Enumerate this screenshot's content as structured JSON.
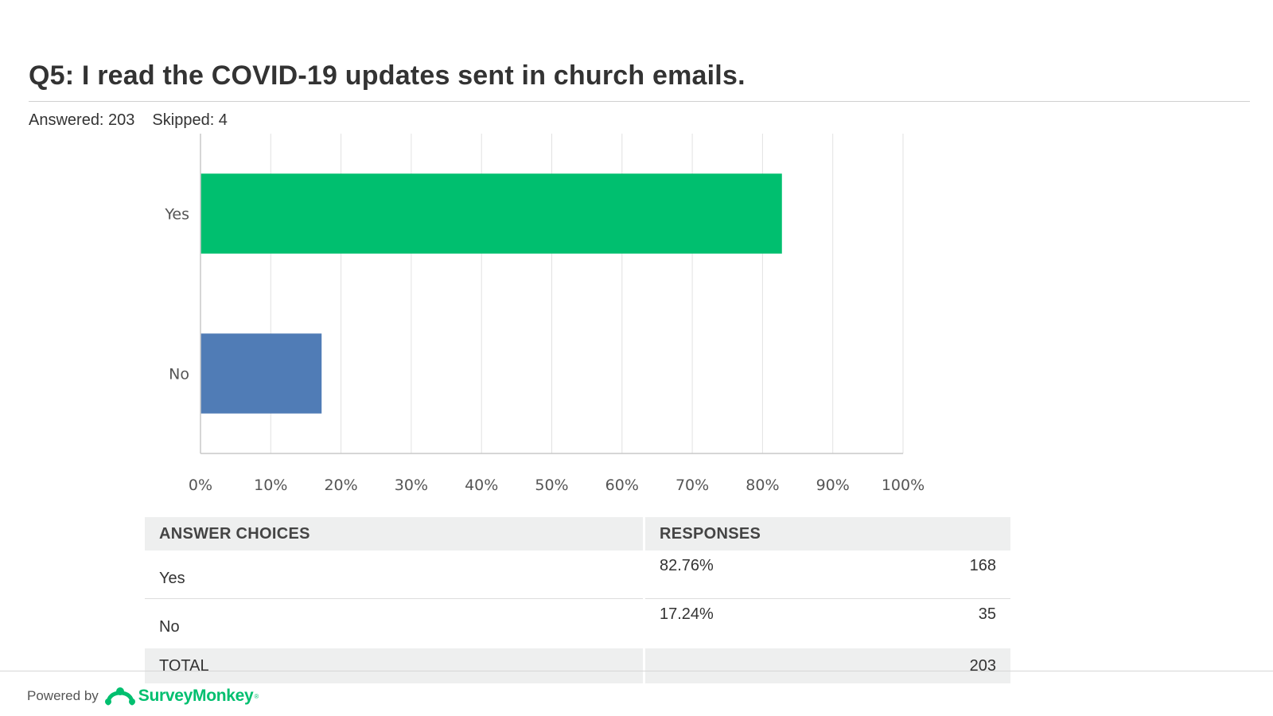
{
  "question": {
    "title": "Q5: I read the COVID-19 updates sent in church emails.",
    "answered": "Answered: 203",
    "skipped": "Skipped: 4"
  },
  "chart_data": {
    "type": "bar",
    "orientation": "horizontal",
    "title": "",
    "xlabel": "",
    "ylabel": "",
    "categories": [
      "Yes",
      "No"
    ],
    "values": [
      82.76,
      17.24
    ],
    "colors": [
      "#00bf6f",
      "#507cb6"
    ],
    "xlim": [
      0,
      100
    ],
    "xticks": [
      0,
      10,
      20,
      30,
      40,
      50,
      60,
      70,
      80,
      90,
      100
    ],
    "xtick_labels": [
      "0%",
      "10%",
      "20%",
      "30%",
      "40%",
      "50%",
      "60%",
      "70%",
      "80%",
      "90%",
      "100%"
    ],
    "grid": true,
    "legend": "none"
  },
  "table": {
    "headers": {
      "choices": "ANSWER CHOICES",
      "responses": "RESPONSES"
    },
    "rows": [
      {
        "choice": "Yes",
        "percent": "82.76%",
        "count": "168"
      },
      {
        "choice": "No",
        "percent": "17.24%",
        "count": "35"
      }
    ],
    "total": {
      "label": "TOTAL",
      "count": "203"
    }
  },
  "footer": {
    "powered_by": "Powered by",
    "brand": "SurveyMonkey",
    "trademark": "®",
    "logo_icon": "surveymonkey-logo-icon"
  },
  "colors": {
    "accent_green": "#00bf6f",
    "bar_blue": "#507cb6",
    "header_gray": "#eeefef"
  }
}
